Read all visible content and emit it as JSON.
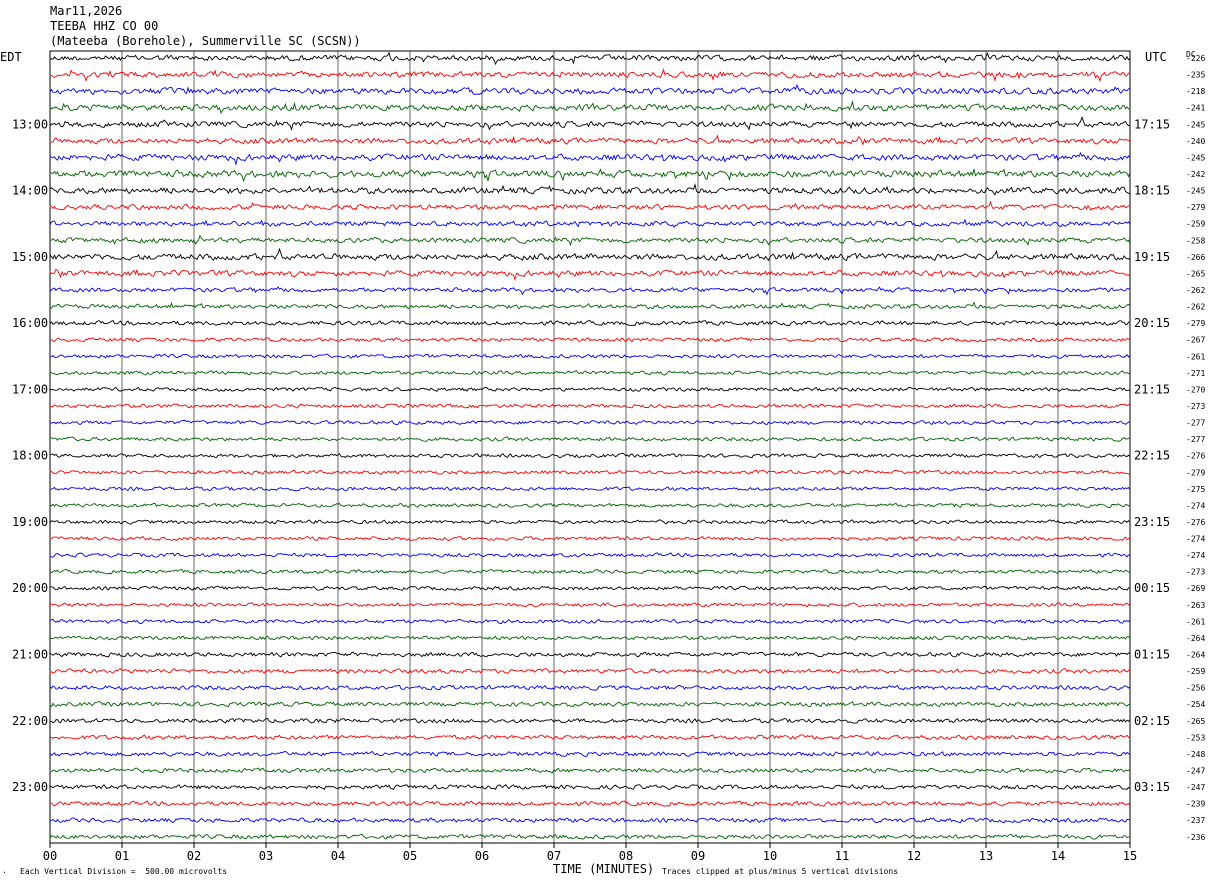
{
  "header": {
    "date": "Mar11,2026",
    "station": "TEEBA HHZ CO 00",
    "location": "(Mateeba (Borehole), Summerville SC (SCSN))"
  },
  "left_axis_label": "EDT",
  "right_axis_label": "UTC",
  "dc_label": "DC",
  "footer": {
    "scale_note": "Each Vertical Division =  500.00 microvolts",
    "clip_note": "Traces clipped at plus/minus 5 vertical divisions",
    "corner_mark": "·"
  },
  "colors": {
    "trace_cycle": [
      "#000000",
      "#ff0000",
      "#0000ff",
      "#006400"
    ],
    "grid": "#000000"
  },
  "chart_data": {
    "type": "seismogram",
    "xlabel": "TIME (MINUTES)",
    "x_ticks": [
      "00",
      "01",
      "02",
      "03",
      "04",
      "05",
      "06",
      "07",
      "08",
      "09",
      "10",
      "11",
      "12",
      "13",
      "14",
      "15"
    ],
    "xlim": [
      0,
      15
    ],
    "left_hour_labels": [
      "13:00",
      "14:00",
      "15:00",
      "16:00",
      "17:00",
      "18:00",
      "19:00",
      "20:00",
      "21:00",
      "22:00",
      "23:00"
    ],
    "right_hour_labels": [
      "17:15",
      "18:15",
      "19:15",
      "20:15",
      "21:15",
      "22:15",
      "23:15",
      "00:15",
      "01:15",
      "02:15",
      "03:15"
    ],
    "dc_offsets": [
      "-226",
      "-235",
      "-218",
      "-241",
      "-245",
      "-240",
      "-245",
      "-242",
      "-245",
      "-279",
      "-259",
      "-258",
      "-266",
      "-265",
      "-262",
      "-262",
      "-279",
      "-267",
      "-261",
      "-271",
      "-270",
      "-273",
      "-277",
      "-277",
      "-276",
      "-279",
      "-275",
      "-274",
      "-276",
      "-274",
      "-274",
      "-273",
      "-269",
      "-263",
      "-261",
      "-264",
      "-264",
      "-259",
      "-256",
      "-254",
      "-265",
      "-253",
      "-248",
      "-247",
      "-247",
      "-239",
      "-237",
      "-236"
    ],
    "trace_noise_level": [
      0.9,
      0.9,
      1.0,
      1.0,
      0.9,
      0.9,
      1.0,
      1.1,
      1.0,
      0.8,
      0.8,
      0.8,
      1.0,
      0.9,
      0.7,
      0.7,
      0.7,
      0.6,
      0.6,
      0.6,
      0.6,
      0.6,
      0.6,
      0.6,
      0.6,
      0.6,
      0.6,
      0.6,
      0.6,
      0.6,
      0.6,
      0.6,
      0.6,
      0.6,
      0.6,
      0.6,
      0.7,
      0.7,
      0.7,
      0.7,
      0.7,
      0.7,
      0.7,
      0.7,
      0.7,
      0.7,
      0.7,
      0.7
    ]
  }
}
